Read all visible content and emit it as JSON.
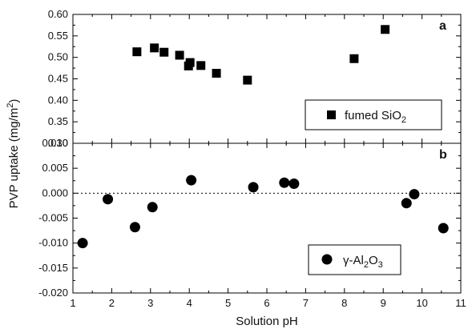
{
  "chart_data": [
    {
      "type": "scatter",
      "panel_label": "a",
      "xlim": [
        1,
        11
      ],
      "ylim": [
        0.3,
        0.6
      ],
      "x_ticks": [
        1,
        2,
        3,
        4,
        5,
        6,
        7,
        8,
        9,
        10,
        11
      ],
      "y_ticks": [
        "0.30",
        "0.35",
        "0.40",
        "0.45",
        "0.50",
        "0.55",
        "0.60"
      ],
      "legend_position": "bottom-right",
      "series": [
        {
          "name_main": "fumed SiO",
          "name_sub": "2",
          "marker": "square",
          "color": "#000000",
          "points": [
            {
              "x": 2.65,
              "y": 0.513
            },
            {
              "x": 3.1,
              "y": 0.522
            },
            {
              "x": 3.35,
              "y": 0.512
            },
            {
              "x": 3.75,
              "y": 0.505
            },
            {
              "x": 3.98,
              "y": 0.48
            },
            {
              "x": 4.02,
              "y": 0.488
            },
            {
              "x": 4.3,
              "y": 0.481
            },
            {
              "x": 4.7,
              "y": 0.463
            },
            {
              "x": 5.5,
              "y": 0.447
            },
            {
              "x": 8.25,
              "y": 0.497
            },
            {
              "x": 9.05,
              "y": 0.565
            }
          ]
        }
      ]
    },
    {
      "type": "scatter",
      "panel_label": "b",
      "xlim": [
        1,
        11
      ],
      "ylim": [
        -0.02,
        0.01
      ],
      "x_ticks": [
        "1",
        "2",
        "3",
        "4",
        "5",
        "6",
        "7",
        "8",
        "9",
        "10",
        "11"
      ],
      "y_ticks": [
        "-0.020",
        "-0.015",
        "-0.010",
        "-0.005",
        "0.000",
        "0.005",
        "0.010"
      ],
      "reference_line_y": 0,
      "legend_position": "bottom-right",
      "series": [
        {
          "name_prefix": "γ-Al",
          "name_sub1": "2",
          "name_mid": "O",
          "name_sub2": "3",
          "marker": "circle",
          "color": "#000000",
          "points": [
            {
              "x": 1.25,
              "y": -0.01
            },
            {
              "x": 1.9,
              "y": -0.0012
            },
            {
              "x": 2.6,
              "y": -0.0068
            },
            {
              "x": 3.05,
              "y": -0.0028
            },
            {
              "x": 4.05,
              "y": 0.0026
            },
            {
              "x": 5.65,
              "y": 0.0012
            },
            {
              "x": 6.45,
              "y": 0.0021
            },
            {
              "x": 6.7,
              "y": 0.0019
            },
            {
              "x": 9.6,
              "y": -0.002
            },
            {
              "x": 9.8,
              "y": -0.0002
            },
            {
              "x": 10.55,
              "y": -0.007
            }
          ]
        }
      ]
    }
  ],
  "shared_labels": {
    "ylabel_main": "PVP uptake (mg/m",
    "ylabel_sup": "2",
    "ylabel_end": ")",
    "xlabel": "Solution pH"
  }
}
